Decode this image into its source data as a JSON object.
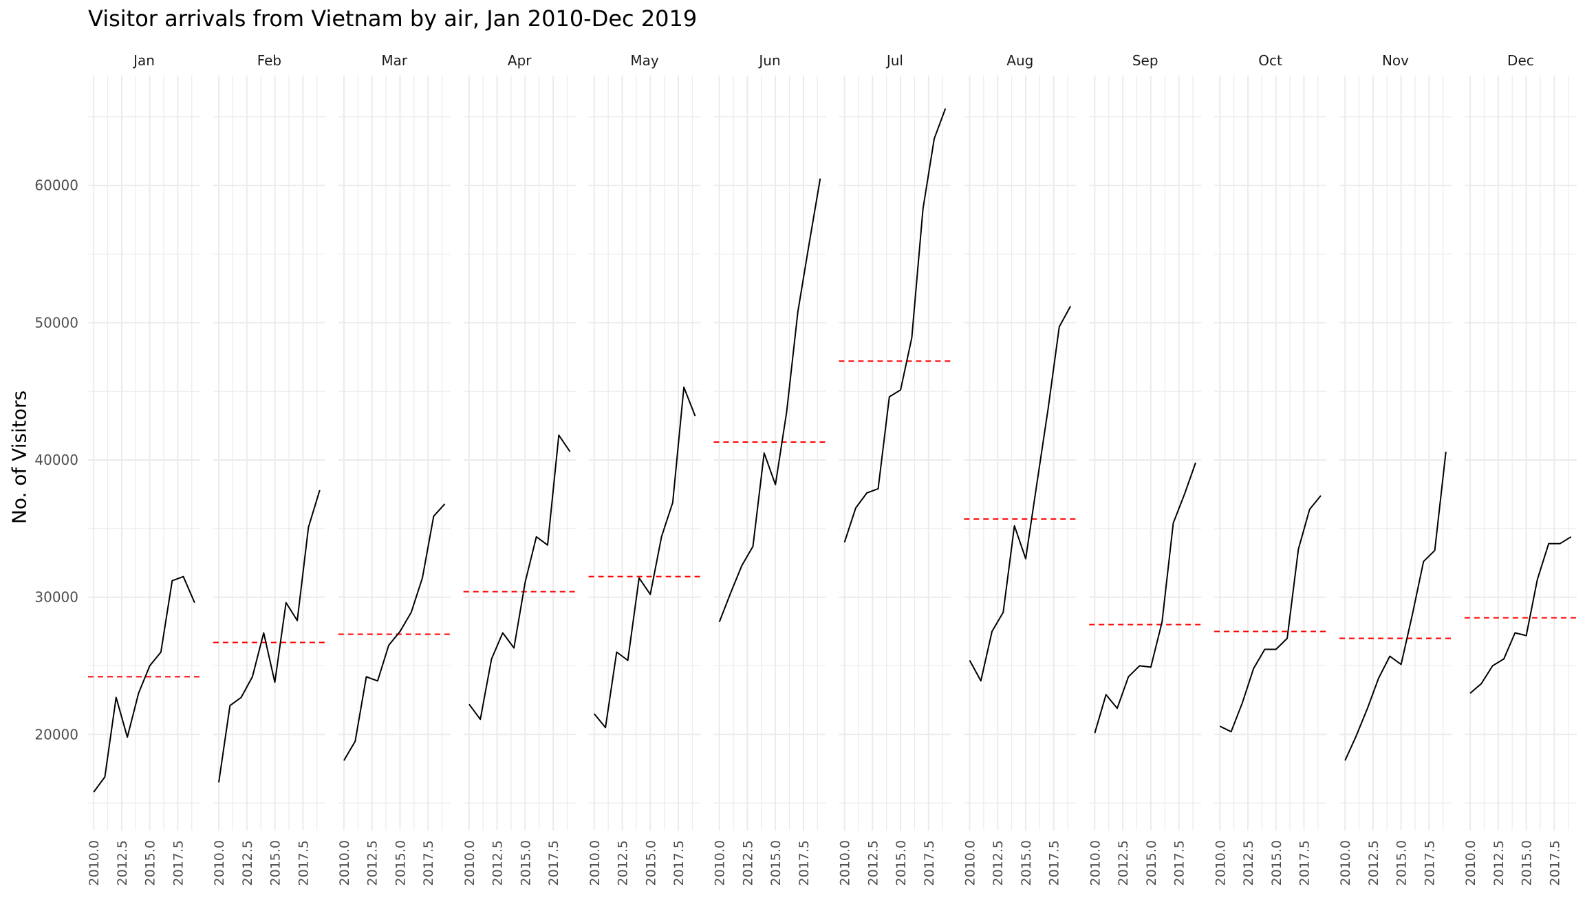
{
  "chart_data": {
    "type": "line",
    "title": "Visitor arrivals from Vietnam by air, Jan 2010-Dec 2019",
    "xlabel": "",
    "ylabel": "No. of Visitors",
    "x": [
      2010,
      2011,
      2012,
      2013,
      2014,
      2015,
      2016,
      2017,
      2018,
      2019
    ],
    "xlim": [
      2009.5,
      2019.5
    ],
    "ylim": [
      13000,
      68000
    ],
    "x_ticks": [
      2010,
      2012.5,
      2015,
      2017.5
    ],
    "x_tick_labels": [
      "2010.0",
      "2012.5",
      "2015.0",
      "2017.5"
    ],
    "y_ticks": [
      20000,
      30000,
      40000,
      50000,
      60000
    ],
    "y_tick_labels": [
      "20000",
      "30000",
      "40000",
      "50000",
      "60000"
    ],
    "grid": true,
    "mean_line_style": "dashed",
    "colors": {
      "series": "#000000",
      "mean": "#ff0000",
      "grid": "#ebebeb"
    },
    "panels": [
      {
        "name": "Jan",
        "values": [
          15800,
          16900,
          22700,
          19800,
          23000,
          25000,
          26000,
          31200,
          31500,
          29600
        ],
        "mean": 24200
      },
      {
        "name": "Feb",
        "values": [
          16500,
          22100,
          22700,
          24200,
          27400,
          23800,
          29600,
          28300,
          35100,
          37800
        ],
        "mean": 26700
      },
      {
        "name": "Mar",
        "values": [
          18100,
          19500,
          24200,
          23900,
          26500,
          27500,
          28900,
          31400,
          35900,
          36800
        ],
        "mean": 27300
      },
      {
        "name": "Apr",
        "values": [
          22200,
          21100,
          25500,
          27400,
          26300,
          31100,
          34400,
          33800,
          41800,
          40600
        ],
        "mean": 30400
      },
      {
        "name": "May",
        "values": [
          21500,
          20500,
          26000,
          25400,
          31400,
          30200,
          34400,
          36900,
          45300,
          43200
        ],
        "mean": 31500
      },
      {
        "name": "Jun",
        "values": [
          28200,
          30300,
          32300,
          33700,
          40500,
          38200,
          43500,
          50800,
          55700,
          60500
        ],
        "mean": 41300
      },
      {
        "name": "Jul",
        "values": [
          34000,
          36500,
          37600,
          37900,
          44600,
          45100,
          48900,
          58300,
          63400,
          65600
        ],
        "mean": 47200
      },
      {
        "name": "Aug",
        "values": [
          25400,
          23900,
          27500,
          28900,
          35200,
          32800,
          38300,
          43700,
          49700,
          51200
        ],
        "mean": 35700
      },
      {
        "name": "Sep",
        "values": [
          20100,
          22900,
          21900,
          24200,
          25000,
          24900,
          28200,
          35400,
          37500,
          39800
        ],
        "mean": 28000
      },
      {
        "name": "Oct",
        "values": [
          20600,
          20200,
          22300,
          24800,
          26200,
          26200,
          27000,
          33500,
          36400,
          37400
        ],
        "mean": 27500
      },
      {
        "name": "Nov",
        "values": [
          18100,
          19900,
          21900,
          24100,
          25700,
          25100,
          28700,
          32600,
          33400,
          40600
        ],
        "mean": 27000
      },
      {
        "name": "Dec",
        "values": [
          23000,
          23700,
          25000,
          25500,
          27400,
          27200,
          31300,
          33900,
          33900,
          34400
        ],
        "mean": 28500
      }
    ]
  }
}
